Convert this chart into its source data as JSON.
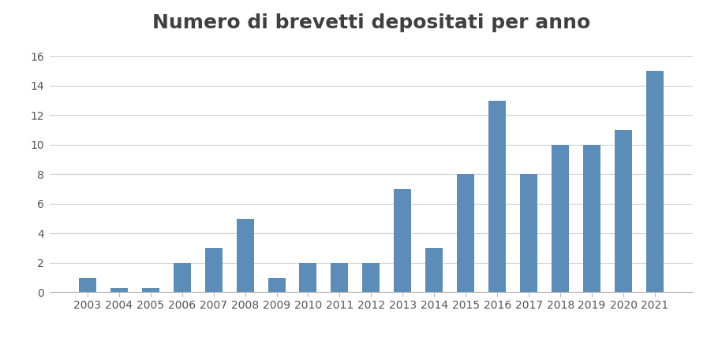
{
  "title": "Numero di brevetti depositati per anno",
  "years": [
    2003,
    2004,
    2005,
    2006,
    2007,
    2008,
    2009,
    2010,
    2011,
    2012,
    2013,
    2014,
    2015,
    2016,
    2017,
    2018,
    2019,
    2020,
    2021
  ],
  "values": [
    1,
    0.3,
    0.3,
    2,
    3,
    5,
    1,
    2,
    2,
    2,
    7,
    3,
    8,
    13,
    8,
    10,
    10,
    11,
    15
  ],
  "bar_color": "#5B8DB8",
  "background_color": "#FFFFFF",
  "ylim": [
    0,
    17
  ],
  "yticks": [
    0,
    2,
    4,
    6,
    8,
    10,
    12,
    14,
    16
  ],
  "title_fontsize": 18,
  "tick_fontsize": 10,
  "grid_color": "#D0D0D0",
  "title_color": "#404040"
}
